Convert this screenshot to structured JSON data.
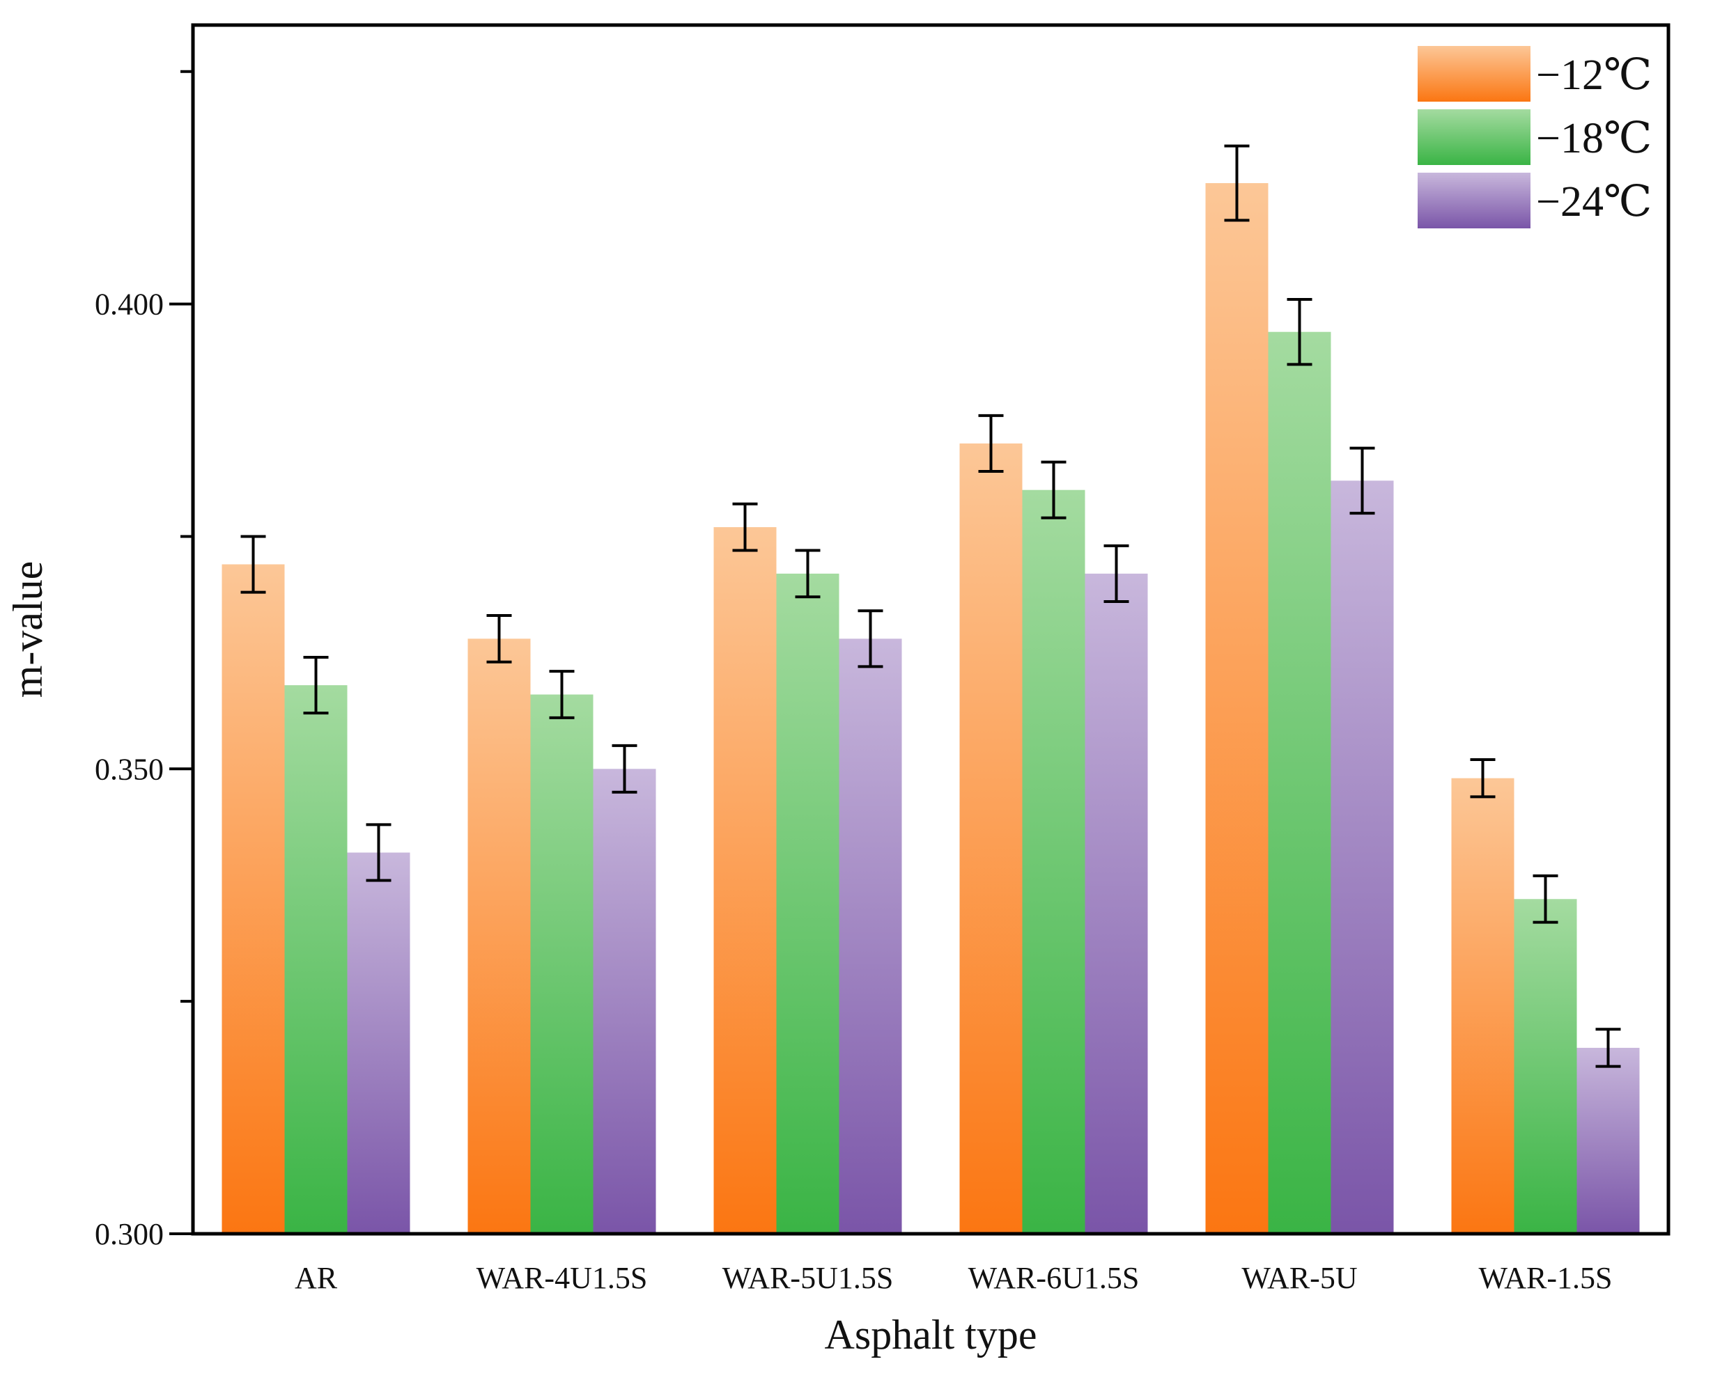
{
  "chart_data": {
    "type": "bar",
    "title": "",
    "xlabel": "Asphalt type",
    "ylabel": "m-value",
    "ylim": [
      0.3,
      0.43
    ],
    "yticks": [
      0.3,
      0.325,
      0.35,
      0.375,
      0.4,
      0.425
    ],
    "ytick_labels": {
      "0.3": "0.300",
      "0.35": "0.350",
      "0.4": "0.400"
    },
    "grid": false,
    "legend_position": "top-right",
    "categories": [
      "AR",
      "WAR-4U1.5S",
      "WAR-5U1.5S",
      "WAR-6U1.5S",
      "WAR-5U",
      "WAR-1.5S"
    ],
    "series": [
      {
        "name": "−12℃",
        "color_top": "#fcc797",
        "color_bottom": "#fb7612",
        "values": [
          0.372,
          0.364,
          0.376,
          0.385,
          0.413,
          0.349
        ],
        "errors": [
          0.003,
          0.0025,
          0.0025,
          0.003,
          0.004,
          0.002
        ]
      },
      {
        "name": "−18℃",
        "color_top": "#a4dba0",
        "color_bottom": "#3ab445",
        "values": [
          0.359,
          0.358,
          0.371,
          0.38,
          0.397,
          0.336
        ],
        "errors": [
          0.003,
          0.0025,
          0.0025,
          0.003,
          0.0035,
          0.0025
        ]
      },
      {
        "name": "−24℃",
        "color_top": "#c8b7dc",
        "color_bottom": "#7a55a8",
        "values": [
          0.341,
          0.35,
          0.364,
          0.371,
          0.381,
          0.32
        ],
        "errors": [
          0.003,
          0.0025,
          0.003,
          0.003,
          0.0035,
          0.002
        ]
      }
    ]
  }
}
